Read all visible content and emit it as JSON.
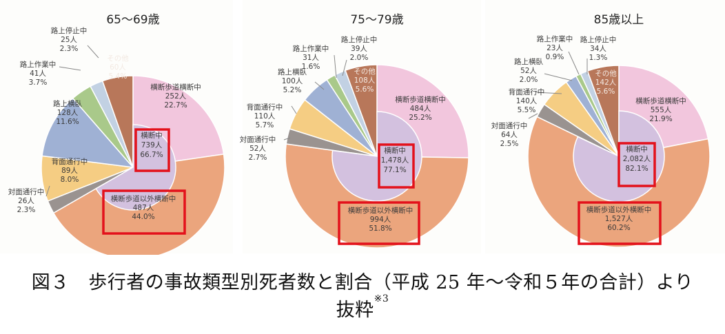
{
  "chart_data": [
    {
      "type": "pie",
      "title": "65～69歳",
      "inner": {
        "label": "横断中",
        "count": "739人",
        "percent": "66.7%",
        "value": 66.7,
        "highlighted": true
      },
      "slices": [
        {
          "label": "横断歩道横断中",
          "count": "252人",
          "percent": "22.7%",
          "value": 22.7,
          "color": "#f2c6dd"
        },
        {
          "label": "横断歩道以外横断中",
          "count": "487人",
          "percent": "44.0%",
          "value": 44.0,
          "color": "#eba57d",
          "highlighted": true
        },
        {
          "label": "対面通行中",
          "count": "26人",
          "percent": "2.3%",
          "value": 2.3,
          "color": "#9a9390"
        },
        {
          "label": "背面通行中",
          "count": "89人",
          "percent": "8.0%",
          "value": 8.0,
          "color": "#f5cd83"
        },
        {
          "label": "路上横臥",
          "count": "128人",
          "percent": "11.6%",
          "value": 11.6,
          "color": "#9fb1d4"
        },
        {
          "label": "路上作業中",
          "count": "41人",
          "percent": "3.7%",
          "value": 3.7,
          "color": "#a9c98a"
        },
        {
          "label": "路上停止中",
          "count": "25人",
          "percent": "2.3%",
          "value": 2.3,
          "color": "#c2d1e3"
        },
        {
          "label": "その他",
          "count": "60人",
          "percent": "5.4%",
          "value": 5.4,
          "color": "#b8775a"
        }
      ]
    },
    {
      "type": "pie",
      "title": "75～79歳",
      "inner": {
        "label": "横断中",
        "count": "1,478人",
        "percent": "77.1%",
        "value": 77.1,
        "highlighted": true
      },
      "slices": [
        {
          "label": "横断歩道横断中",
          "count": "484人",
          "percent": "25.2%",
          "value": 25.2,
          "color": "#f2c6dd"
        },
        {
          "label": "横断歩道以外横断中",
          "count": "994人",
          "percent": "51.8%",
          "value": 51.8,
          "color": "#eba57d",
          "highlighted": true
        },
        {
          "label": "対面通行中",
          "count": "52人",
          "percent": "2.7%",
          "value": 2.7,
          "color": "#9a9390"
        },
        {
          "label": "背面通行中",
          "count": "110人",
          "percent": "5.7%",
          "value": 5.7,
          "color": "#f5cd83"
        },
        {
          "label": "路上横臥",
          "count": "100人",
          "percent": "5.2%",
          "value": 5.2,
          "color": "#9fb1d4"
        },
        {
          "label": "路上作業中",
          "count": "31人",
          "percent": "1.6%",
          "value": 1.6,
          "color": "#a9c98a"
        },
        {
          "label": "路上停止中",
          "count": "39人",
          "percent": "2.0%",
          "value": 2.0,
          "color": "#c2d1e3"
        },
        {
          "label": "その他",
          "count": "108人",
          "percent": "5.6%",
          "value": 5.6,
          "color": "#b8775a"
        }
      ]
    },
    {
      "type": "pie",
      "title": "85歳以上",
      "inner": {
        "label": "横断中",
        "count": "2,082人",
        "percent": "82.1%",
        "value": 82.1,
        "highlighted": true
      },
      "slices": [
        {
          "label": "横断歩道横断中",
          "count": "555人",
          "percent": "21.9%",
          "value": 21.9,
          "color": "#f2c6dd"
        },
        {
          "label": "横断歩道以外横断中",
          "count": "1,527人",
          "percent": "60.2%",
          "value": 60.2,
          "color": "#eba57d",
          "highlighted": true
        },
        {
          "label": "対面通行中",
          "count": "64人",
          "percent": "2.5%",
          "value": 2.5,
          "color": "#9a9390"
        },
        {
          "label": "背面通行中",
          "count": "140人",
          "percent": "5.5%",
          "value": 5.5,
          "color": "#f5cd83"
        },
        {
          "label": "路上横臥",
          "count": "52人",
          "percent": "2.0%",
          "value": 2.0,
          "color": "#9fb1d4"
        },
        {
          "label": "路上作業中",
          "count": "23人",
          "percent": "0.9%",
          "value": 0.9,
          "color": "#a9c98a"
        },
        {
          "label": "路上停止中",
          "count": "34人",
          "percent": "1.3%",
          "value": 1.3,
          "color": "#c2d1e3"
        },
        {
          "label": "その他",
          "count": "142人",
          "percent": "5.6%",
          "value": 5.6,
          "color": "#b8775a"
        }
      ]
    }
  ],
  "colors": {
    "inner": "#d3c1df",
    "highlight_box": "#e3111b",
    "text": "#3a3a3a"
  },
  "caption": {
    "line1": "図３　歩行者の事故類型別死者数と割合（平成 25 年～令和５年の合計）より",
    "line2": "抜粋",
    "footnote": "※3"
  }
}
